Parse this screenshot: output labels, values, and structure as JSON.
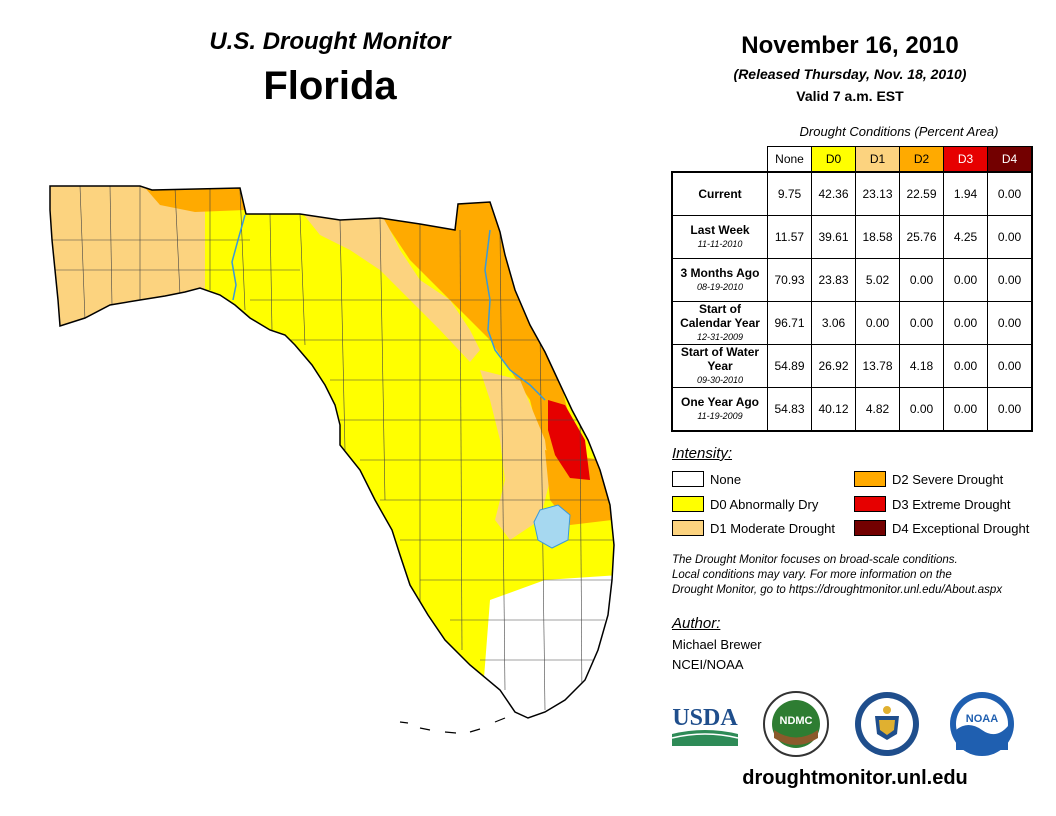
{
  "header": {
    "product": "U.S. Drought Monitor",
    "state": "Florida",
    "date": "November 16, 2010",
    "released": "(Released Thursday, Nov. 18, 2010)",
    "valid": "Valid 7 a.m. EST"
  },
  "table": {
    "caption": "Drought Conditions (Percent Area)",
    "columns": [
      "None",
      "D0",
      "D1",
      "D2",
      "D3",
      "D4"
    ],
    "column_colors": [
      "#ffffff",
      "#ffff00",
      "#fcd37f",
      "#ffaa00",
      "#e60000",
      "#730000"
    ],
    "rows": [
      {
        "label": "Current",
        "date": "",
        "values": [
          "9.75",
          "42.36",
          "23.13",
          "22.59",
          "1.94",
          "0.00"
        ]
      },
      {
        "label": "Last Week",
        "date": "11-11-2010",
        "values": [
          "11.57",
          "39.61",
          "18.58",
          "25.76",
          "4.25",
          "0.00"
        ]
      },
      {
        "label": "3 Months Ago",
        "date": "08-19-2010",
        "values": [
          "70.93",
          "23.83",
          "5.02",
          "0.00",
          "0.00",
          "0.00"
        ]
      },
      {
        "label": "Start of Calendar Year",
        "date": "12-31-2009",
        "values": [
          "96.71",
          "3.06",
          "0.00",
          "0.00",
          "0.00",
          "0.00"
        ]
      },
      {
        "label": "Start of Water Year",
        "date": "09-30-2010",
        "values": [
          "54.89",
          "26.92",
          "13.78",
          "4.18",
          "0.00",
          "0.00"
        ]
      },
      {
        "label": "One Year Ago",
        "date": "11-19-2009",
        "values": [
          "54.83",
          "40.12",
          "4.82",
          "0.00",
          "0.00",
          "0.00"
        ]
      }
    ]
  },
  "legend": {
    "title": "Intensity:",
    "items": [
      {
        "label": "None",
        "color": "#ffffff"
      },
      {
        "label": "D0 Abnormally Dry",
        "color": "#ffff00"
      },
      {
        "label": "D1 Moderate Drought",
        "color": "#fcd37f"
      },
      {
        "label": "D2 Severe Drought",
        "color": "#ffaa00"
      },
      {
        "label": "D3 Extreme Drought",
        "color": "#e60000"
      },
      {
        "label": "D4 Exceptional Drought",
        "color": "#730000"
      }
    ]
  },
  "note": {
    "line1": "The Drought Monitor focuses on broad-scale conditions.",
    "line2": "Local conditions may vary. For more information on the",
    "line3": "Drought Monitor, go to https://droughtmonitor.unl.edu/About.aspx"
  },
  "author": {
    "title": "Author:",
    "name": "Michael Brewer",
    "org": "NCEI/NOAA"
  },
  "logos": {
    "usda": "USDA",
    "ndmc": "NDMC",
    "noaa": "NOAA"
  },
  "website": "droughtmonitor.unl.edu"
}
